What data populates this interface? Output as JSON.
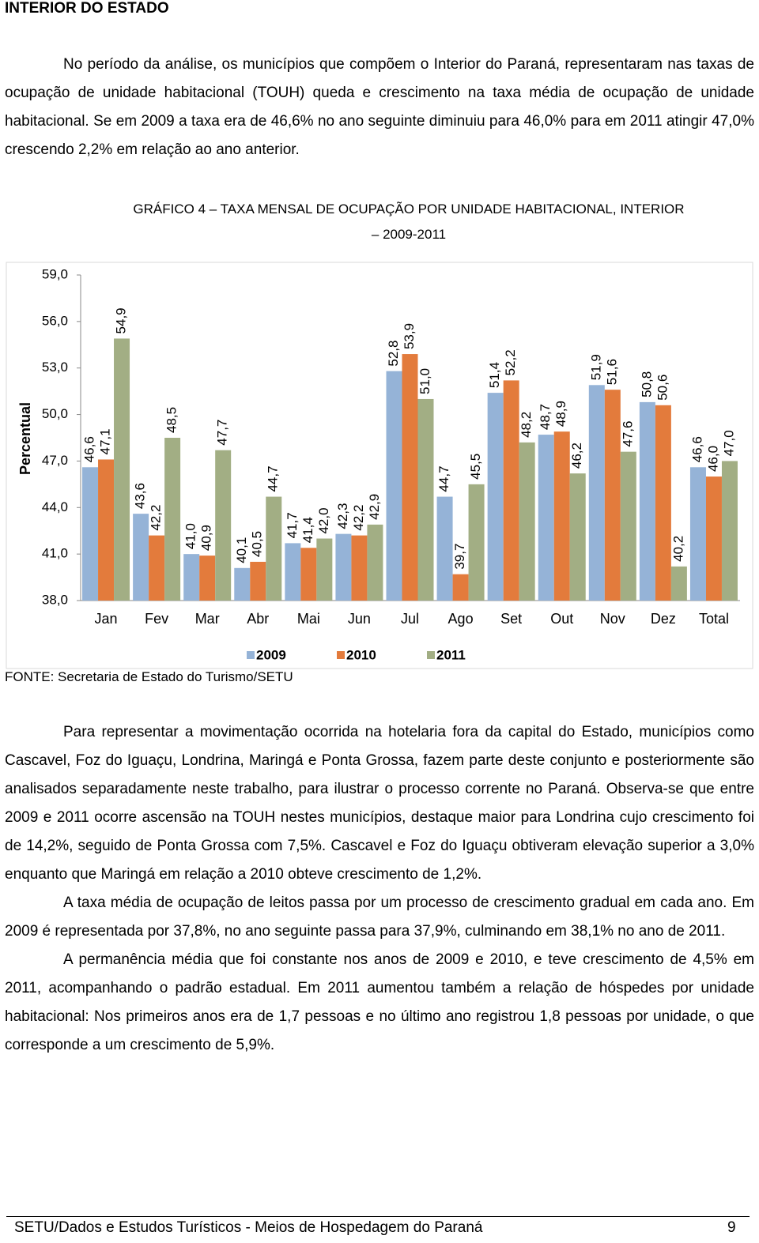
{
  "header": {
    "title": "INTERIOR DO ESTADO"
  },
  "paragraphs": [
    "No período da análise, os municípios que compõem o Interior do Paraná, representaram nas taxas de ocupação de unidade habitacional (TOUH) queda e crescimento na taxa média de ocupação de unidade habitacional. Se em 2009 a taxa era de 46,6% no ano seguinte diminuiu para 46,0% para em 2011 atingir 47,0% crescendo 2,2% em relação ao ano anterior.",
    "Para representar a movimentação ocorrida na hotelaria fora da capital do Estado, municípios como Cascavel, Foz do Iguaçu, Londrina, Maringá e Ponta Grossa, fazem parte deste conjunto e posteriormente são analisados separadamente neste trabalho, para ilustrar o processo corrente no Paraná. Observa-se que entre 2009 e 2011 ocorre ascensão na TOUH nestes municípios, destaque maior para Londrina cujo crescimento foi de 14,2%, seguido de Ponta Grossa com 7,5%. Cascavel e Foz do Iguaçu obtiveram elevação superior a 3,0% enquanto que Maringá em relação a 2010 obteve crescimento de 1,2%.",
    "A taxa média de ocupação de leitos passa por um processo de crescimento gradual em cada ano. Em 2009 é representada por 37,8%, no ano seguinte passa para 37,9%, culminando em 38,1% no ano de 2011.",
    "A permanência média que foi constante nos anos de 2009 e 2010, e teve crescimento de 4,5% em 2011, acompanhando o padrão estadual. Em 2011 aumentou também a relação de hóspedes por unidade habitacional: Nos primeiros anos era de 1,7 pessoas e no último ano registrou 1,8 pessoas por unidade, o que corresponde a um crescimento de 5,9%."
  ],
  "chart_data": {
    "type": "bar",
    "title": "GRÁFICO 4 – TAXA MENSAL DE OCUPAÇÃO POR UNIDADE HABITACIONAL, INTERIOR – 2009-2011",
    "y_label": "Percentual",
    "categories": [
      "Jan",
      "Fev",
      "Mar",
      "Abr",
      "Mai",
      "Jun",
      "Jul",
      "Ago",
      "Set",
      "Out",
      "Nov",
      "Dez",
      "Total"
    ],
    "series": [
      {
        "name": "2009",
        "color": "#95b3d7",
        "values": [
          46.6,
          43.6,
          41.0,
          40.1,
          41.7,
          42.3,
          52.8,
          44.7,
          51.4,
          48.7,
          51.9,
          50.8,
          46.6
        ],
        "value_labels": [
          "46,6",
          "43,6",
          "41,0",
          "40,1",
          "41,7",
          "42,3",
          "52,8",
          "44,7",
          "51,4",
          "48,7",
          "51,9",
          "50,8",
          "46,6"
        ]
      },
      {
        "name": "2010",
        "color": "#e37b3c",
        "values": [
          47.1,
          42.2,
          40.9,
          40.5,
          41.4,
          42.2,
          53.9,
          39.7,
          52.2,
          48.9,
          51.6,
          50.6,
          46.0
        ],
        "value_labels": [
          "47,1",
          "42,2",
          "40,9",
          "40,5",
          "41,4",
          "42,2",
          "53,9",
          "39,7",
          "52,2",
          "48,9",
          "51,6",
          "50,6",
          "46,0"
        ]
      },
      {
        "name": "2011",
        "color": "#a2ae84",
        "values": [
          54.9,
          48.5,
          47.7,
          44.7,
          42.0,
          42.9,
          51.0,
          45.5,
          48.2,
          46.2,
          47.6,
          40.2,
          47.0
        ],
        "value_labels": [
          "54,9",
          "48,5",
          "47,7",
          "44,7",
          "42,0",
          "42,9",
          "51,0",
          "45,5",
          "48,2",
          "46,2",
          "47,6",
          "40,2",
          "47,0"
        ]
      }
    ],
    "ylim": [
      38,
      59
    ],
    "yticks": [
      {
        "value": 38,
        "label": "38,0"
      },
      {
        "value": 41,
        "label": "41,0"
      },
      {
        "value": 44,
        "label": "44,0"
      },
      {
        "value": 47,
        "label": "47,0"
      },
      {
        "value": 50,
        "label": "50,0"
      },
      {
        "value": 53,
        "label": "53,0"
      },
      {
        "value": 56,
        "label": "56,0"
      },
      {
        "value": 59,
        "label": "59,0"
      }
    ],
    "grid": false,
    "legend": "bottom"
  },
  "source": "FONTE: Secretaria de Estado do Turismo/SETU",
  "footer": {
    "text": "SETU/Dados e Estudos Turísticos - Meios de Hospedagem do Paraná",
    "page": "9"
  }
}
